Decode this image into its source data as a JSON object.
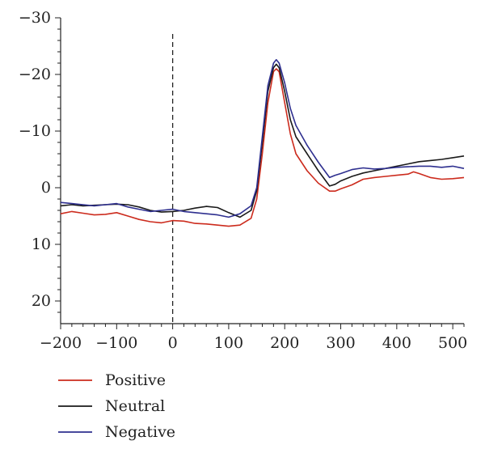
{
  "chart_data": {
    "type": "line",
    "title": "",
    "xlabel": "",
    "ylabel": "",
    "xlim": [
      -200,
      520
    ],
    "ylim": [
      -30,
      24
    ],
    "y_inverted": true,
    "grid": false,
    "legend_position": "bottom-left",
    "x_ticks": [
      -200,
      -100,
      0,
      100,
      200,
      300,
      400,
      500
    ],
    "x_tick_labels": [
      "−200",
      "−100",
      "0",
      "100",
      "200",
      "300",
      "400",
      "500"
    ],
    "y_ticks": [
      -30,
      -20,
      -10,
      0,
      10,
      20
    ],
    "y_tick_labels": [
      "−30",
      "−20",
      "−10",
      "0",
      "10",
      "20"
    ],
    "reference_lines": [
      {
        "x": 0,
        "style": "dashed"
      }
    ],
    "series": [
      {
        "name": "Positive",
        "color": "#cc2b1d",
        "x": [
          -200,
          -180,
          -160,
          -140,
          -120,
          -100,
          -80,
          -60,
          -40,
          -20,
          0,
          20,
          40,
          60,
          80,
          100,
          120,
          140,
          150,
          160,
          170,
          180,
          185,
          190,
          200,
          210,
          220,
          240,
          260,
          280,
          290,
          300,
          320,
          340,
          360,
          380,
          400,
          420,
          430,
          440,
          460,
          480,
          500,
          520
        ],
        "y": [
          4.6,
          4.2,
          4.5,
          4.8,
          4.7,
          4.4,
          5.0,
          5.6,
          6.0,
          6.2,
          5.8,
          5.9,
          6.3,
          6.4,
          6.6,
          6.8,
          6.6,
          5.4,
          2.0,
          -6.0,
          -15.0,
          -20.5,
          -21.0,
          -20.5,
          -15.0,
          -9.5,
          -6.0,
          -3.0,
          -0.8,
          0.6,
          0.6,
          0.2,
          -0.5,
          -1.5,
          -1.8,
          -2.0,
          -2.2,
          -2.4,
          -2.8,
          -2.5,
          -1.8,
          -1.5,
          -1.6,
          -1.8
        ]
      },
      {
        "name": "Neutral",
        "color": "#1a1a1a",
        "x": [
          -200,
          -180,
          -160,
          -140,
          -120,
          -100,
          -80,
          -60,
          -40,
          -20,
          0,
          20,
          40,
          60,
          80,
          100,
          120,
          140,
          150,
          160,
          170,
          180,
          185,
          190,
          200,
          210,
          220,
          240,
          260,
          280,
          290,
          300,
          320,
          340,
          360,
          380,
          400,
          420,
          440,
          460,
          480,
          500,
          520
        ],
        "y": [
          3.2,
          3.0,
          3.2,
          3.1,
          3.0,
          2.9,
          3.0,
          3.4,
          4.0,
          4.3,
          4.2,
          4.0,
          3.6,
          3.3,
          3.5,
          4.4,
          5.2,
          4.0,
          0.5,
          -8.0,
          -17.0,
          -21.2,
          -21.8,
          -21.2,
          -17.0,
          -12.0,
          -9.0,
          -6.0,
          -3.0,
          -0.3,
          -0.6,
          -1.2,
          -2.0,
          -2.6,
          -3.0,
          -3.4,
          -3.8,
          -4.2,
          -4.6,
          -4.8,
          -5.0,
          -5.3,
          -5.6
        ]
      },
      {
        "name": "Negative",
        "color": "#2e2f8f",
        "x": [
          -200,
          -180,
          -160,
          -140,
          -120,
          -100,
          -80,
          -60,
          -40,
          -20,
          0,
          20,
          40,
          60,
          80,
          100,
          120,
          140,
          150,
          160,
          170,
          180,
          185,
          190,
          200,
          210,
          220,
          240,
          260,
          280,
          290,
          300,
          320,
          340,
          360,
          380,
          400,
          420,
          440,
          460,
          480,
          500,
          520
        ],
        "y": [
          2.6,
          2.8,
          3.0,
          3.2,
          3.0,
          2.8,
          3.4,
          3.8,
          4.2,
          4.0,
          3.8,
          4.2,
          4.4,
          4.6,
          4.8,
          5.2,
          4.6,
          3.2,
          0.0,
          -9.0,
          -18.0,
          -22.0,
          -22.6,
          -22.0,
          -18.5,
          -14.0,
          -11.0,
          -7.5,
          -4.5,
          -1.8,
          -2.2,
          -2.5,
          -3.2,
          -3.5,
          -3.3,
          -3.4,
          -3.6,
          -3.7,
          -3.8,
          -3.8,
          -3.6,
          -3.8,
          -3.4
        ]
      }
    ]
  }
}
